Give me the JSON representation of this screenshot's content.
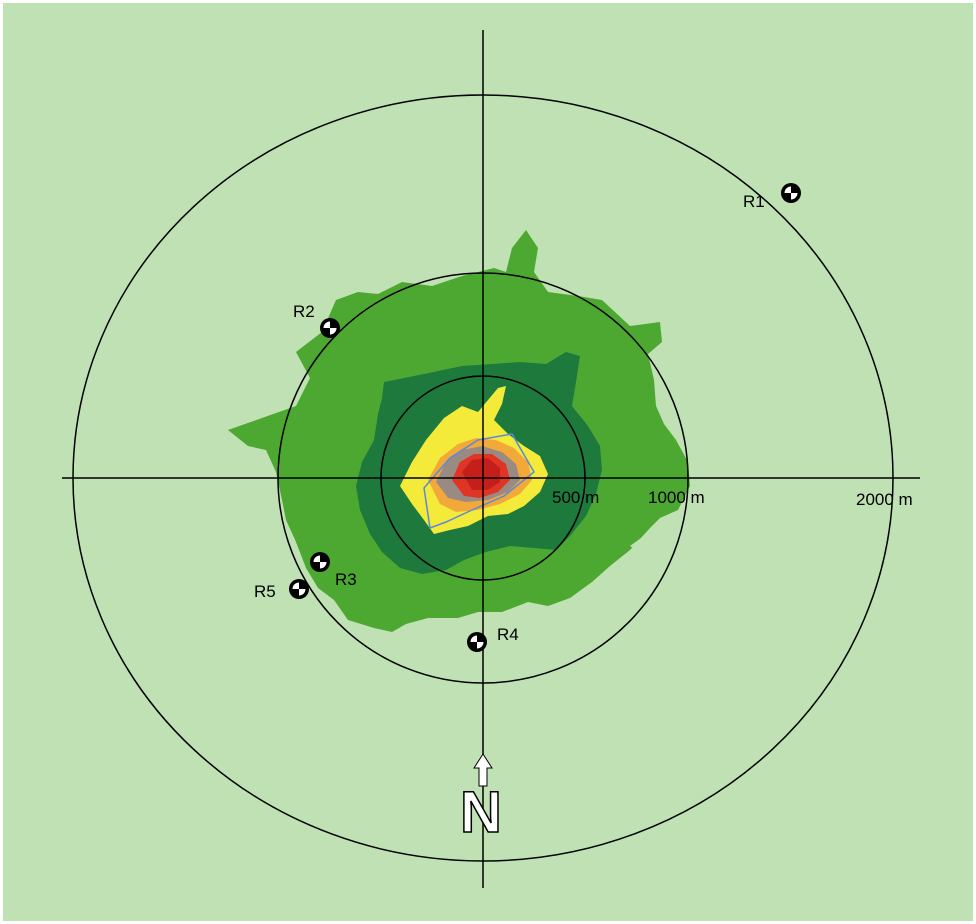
{
  "colors": {
    "background": "#bfe1b3",
    "zone_outer": "#4da832",
    "zone_mid": "#1e7a3c",
    "zone_yellow": "#f3ea3a",
    "zone_orange": "#f2a93a",
    "zone_gray": "#9a8a84",
    "zone_red": "#e03424",
    "zone_darkred": "#c41f1a",
    "footprint": "#5a8ad8",
    "lines": "#000000"
  },
  "rings": [
    {
      "label": "500 m",
      "radius_m": 500
    },
    {
      "label": "1000 m",
      "radius_m": 1000
    },
    {
      "label": "2000 m",
      "radius_m": 2000
    }
  ],
  "receptors": [
    {
      "id": "R1",
      "label": "R1",
      "icon": "receptor-marker-icon"
    },
    {
      "id": "R2",
      "label": "R2",
      "icon": "receptor-marker-icon"
    },
    {
      "id": "R3",
      "label": "R3",
      "icon": "receptor-marker-icon"
    },
    {
      "id": "R4",
      "label": "R4",
      "icon": "receptor-marker-icon"
    },
    {
      "id": "R5",
      "label": "R5",
      "icon": "receptor-marker-icon"
    }
  ],
  "north_arrow": {
    "letter": "N",
    "icon": "north-arrow-icon"
  }
}
